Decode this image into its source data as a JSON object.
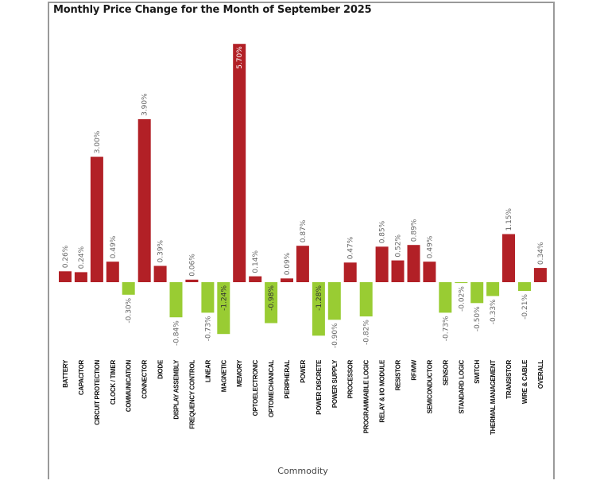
{
  "chart_data": {
    "type": "bar",
    "title": "Monthly Price Change for the Month of September 2025",
    "xlabel": "Commodity",
    "ylabel": "",
    "ylim": [
      -1.5,
      5.7
    ],
    "grid": false,
    "value_format": "percent_2dp",
    "colors": {
      "positive": "#B22026",
      "negative": "#99CC33",
      "inside_label": "#FFFFFF",
      "outside_label": "#666666"
    },
    "categories": [
      "BATTERY",
      "CAPACITOR",
      "CIRCUIT PROTECTION",
      "CLOCK / TIMER",
      "COMMUNICATION",
      "CONNECTOR",
      "DIODE",
      "DISPLAY ASSEMBLY",
      "FREQUENCY CONTROL",
      "LINEAR",
      "MAGNETIC",
      "MEMORY",
      "OPTOELECTRONIC",
      "OPTOMECHANICAL",
      "PERIPHERAL",
      "POWER",
      "POWER DISCRETE",
      "POWER SUPPLY",
      "PROCESSOR",
      "PROGRAMMABLE LOGIC",
      "RELAY & I/O MODULE",
      "RESISTOR",
      "RF/MW",
      "SEMICONDUCTOR",
      "SENSOR",
      "STANDARD LOGIC",
      "SWITCH",
      "THERMAL MANAGEMENT",
      "TRANSISTOR",
      "WIRE & CABLE",
      "OVERALL"
    ],
    "values": [
      0.26,
      0.24,
      3.0,
      0.49,
      -0.3,
      3.9,
      0.39,
      -0.84,
      0.06,
      -0.73,
      -1.24,
      5.7,
      0.14,
      -0.98,
      0.09,
      0.87,
      -1.28,
      -0.9,
      0.47,
      -0.82,
      0.85,
      0.52,
      0.89,
      0.49,
      -0.73,
      -0.02,
      -0.5,
      -0.33,
      1.15,
      -0.21,
      0.34
    ],
    "data_labels": [
      "0.26%",
      "0.24%",
      "3.00%",
      "0.49%",
      "-0.30%",
      "3.90%",
      "0.39%",
      "-0.84%",
      "0.06%",
      "-0.73%",
      "-1.24%",
      "5.70%",
      "0.14%",
      "-0.98%",
      "0.09%",
      "0.87%",
      "-1.28%",
      "-0.90%",
      "0.47%",
      "-0.82%",
      "0.85%",
      "0.52%",
      "0.89%",
      "0.49%",
      "-0.73%",
      "-0.02%",
      "-0.50%",
      "-0.33%",
      "1.15%",
      "-0.21%",
      "0.34%"
    ],
    "labels_inside": [
      "5.70%",
      "-1.24%",
      "-0.98%",
      "-1.28%"
    ]
  }
}
